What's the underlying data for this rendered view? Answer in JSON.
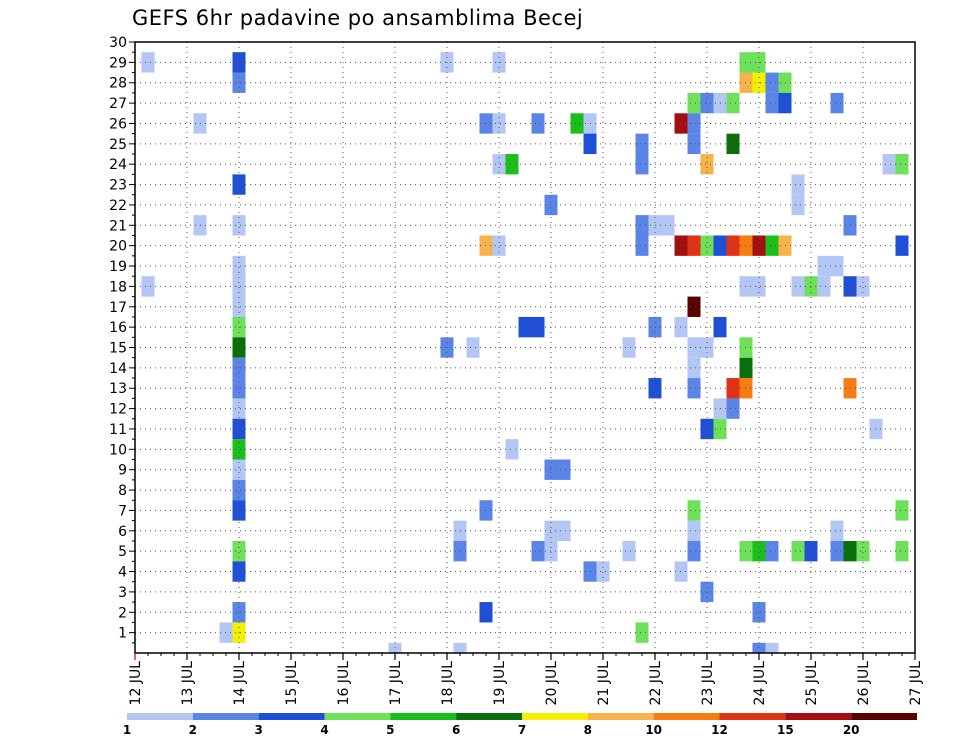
{
  "chart_data": {
    "type": "heatmap",
    "title": "GEFS 6hr padavine po ansamblima Becej",
    "xlabel": "",
    "ylabel": "",
    "x_ticks": [
      "12 JUL",
      "13 JUL",
      "14 JUL",
      "15 JUL",
      "16 JUL",
      "17 JUL",
      "18 JUL",
      "19 JUL",
      "20 JUL",
      "21 JUL",
      "22 JUL",
      "23 JUL",
      "24 JUL",
      "25 JUL",
      "26 JUL",
      "27 JUL"
    ],
    "y_ticks": [
      1,
      2,
      3,
      4,
      5,
      6,
      7,
      8,
      9,
      10,
      11,
      12,
      13,
      14,
      15,
      16,
      17,
      18,
      19,
      20,
      21,
      22,
      23,
      24,
      25,
      26,
      27,
      28,
      29,
      30
    ],
    "xlim_days": [
      12,
      27
    ],
    "ylim": [
      0,
      30
    ],
    "grid": true,
    "colorbar": {
      "labels": [
        "1",
        "2",
        "3",
        "4",
        "5",
        "6",
        "7",
        "8",
        "10",
        "12",
        "15",
        "20"
      ],
      "colors": [
        "#b3c6f4",
        "#5a85e6",
        "#1f4fd6",
        "#6ee05a",
        "#1bbf1b",
        "#0a6e0a",
        "#f5f000",
        "#f7b24a",
        "#f57d14",
        "#e03214",
        "#a30f0f",
        "#5a0000"
      ]
    },
    "cells": [
      [
        12.25,
        29,
        0
      ],
      [
        12.25,
        18,
        0
      ],
      [
        13.25,
        26,
        0
      ],
      [
        13.25,
        21,
        0
      ],
      [
        14,
        29,
        2
      ],
      [
        14,
        28,
        1
      ],
      [
        14,
        23,
        2
      ],
      [
        14,
        21,
        0
      ],
      [
        14,
        19,
        0
      ],
      [
        14,
        18,
        0
      ],
      [
        14,
        17,
        0
      ],
      [
        14,
        16,
        3
      ],
      [
        14,
        15,
        5
      ],
      [
        14,
        14,
        1
      ],
      [
        14,
        13,
        1
      ],
      [
        14,
        12,
        0
      ],
      [
        14,
        11,
        2
      ],
      [
        14,
        10,
        4
      ],
      [
        14,
        9,
        0
      ],
      [
        14,
        8,
        1
      ],
      [
        14,
        7,
        2
      ],
      [
        14,
        5,
        3
      ],
      [
        14,
        4,
        2
      ],
      [
        14,
        2,
        1
      ],
      [
        14,
        1,
        6
      ],
      [
        13.75,
        1,
        0
      ],
      [
        17,
        0,
        0
      ],
      [
        18,
        29,
        0
      ],
      [
        18,
        15,
        1
      ],
      [
        18.25,
        6,
        0
      ],
      [
        18.25,
        5,
        1
      ],
      [
        18.25,
        0,
        0
      ],
      [
        18.5,
        15,
        0
      ],
      [
        18.75,
        26,
        1
      ],
      [
        18.75,
        20,
        7
      ],
      [
        18.75,
        7,
        1
      ],
      [
        18.75,
        2,
        2
      ],
      [
        19,
        29,
        0
      ],
      [
        19,
        26,
        0
      ],
      [
        19,
        24,
        0
      ],
      [
        19,
        20,
        0
      ],
      [
        19.25,
        24,
        4
      ],
      [
        19.25,
        10,
        0
      ],
      [
        19.5,
        16,
        2
      ],
      [
        19.75,
        16,
        2
      ],
      [
        19.75,
        26,
        1
      ],
      [
        19.75,
        5,
        1
      ],
      [
        20,
        5,
        0
      ],
      [
        20,
        22,
        1
      ],
      [
        20,
        9,
        1
      ],
      [
        20.25,
        9,
        1
      ],
      [
        20,
        6,
        0
      ],
      [
        20.25,
        6,
        0
      ],
      [
        20.5,
        26,
        4
      ],
      [
        20.75,
        26,
        0
      ],
      [
        20.75,
        25,
        2
      ],
      [
        20.75,
        4,
        1
      ],
      [
        21,
        4,
        0
      ],
      [
        21.5,
        15,
        0
      ],
      [
        21.5,
        5,
        0
      ],
      [
        21.75,
        25,
        1
      ],
      [
        21.75,
        24,
        1
      ],
      [
        21.75,
        21,
        1
      ],
      [
        21.75,
        20,
        1
      ],
      [
        21.75,
        1,
        3
      ],
      [
        22,
        21,
        0
      ],
      [
        22.25,
        21,
        0
      ],
      [
        22,
        16,
        1
      ],
      [
        22,
        13,
        2
      ],
      [
        22.5,
        16,
        0
      ],
      [
        22.5,
        4,
        0
      ],
      [
        22.5,
        26,
        10
      ],
      [
        22.5,
        20,
        10
      ],
      [
        22.75,
        20,
        9
      ],
      [
        23,
        20,
        3
      ],
      [
        23.25,
        20,
        2
      ],
      [
        23.5,
        20,
        9
      ],
      [
        23.75,
        20,
        8
      ],
      [
        24,
        20,
        10
      ],
      [
        24.25,
        20,
        4
      ],
      [
        24.5,
        20,
        7
      ],
      [
        22.75,
        27,
        3
      ],
      [
        23,
        27,
        1
      ],
      [
        23.25,
        27,
        0
      ],
      [
        23.5,
        27,
        3
      ],
      [
        23.75,
        28,
        7
      ],
      [
        24,
        28,
        6
      ],
      [
        24.25,
        28,
        1
      ],
      [
        24.5,
        28,
        3
      ],
      [
        24.25,
        27,
        1
      ],
      [
        24.5,
        27,
        2
      ],
      [
        25.5,
        27,
        1
      ],
      [
        23.75,
        29,
        3
      ],
      [
        24,
        29,
        3
      ],
      [
        22.75,
        26,
        1
      ],
      [
        22.75,
        25,
        1
      ],
      [
        22.75,
        17,
        11
      ],
      [
        23,
        24,
        7
      ],
      [
        23,
        15,
        0
      ],
      [
        22.75,
        15,
        0
      ],
      [
        22.75,
        14,
        0
      ],
      [
        22.75,
        13,
        1
      ],
      [
        23.25,
        16,
        2
      ],
      [
        23,
        11,
        2
      ],
      [
        23.25,
        11,
        3
      ],
      [
        23.25,
        12,
        0
      ],
      [
        23.5,
        12,
        1
      ],
      [
        23.5,
        13,
        9
      ],
      [
        23.75,
        13,
        8
      ],
      [
        23.75,
        14,
        5
      ],
      [
        23.75,
        15,
        3
      ],
      [
        23.5,
        25,
        5
      ],
      [
        22.75,
        7,
        3
      ],
      [
        22.75,
        6,
        0
      ],
      [
        22.75,
        5,
        1
      ],
      [
        23,
        3,
        1
      ],
      [
        23.75,
        18,
        0
      ],
      [
        24,
        18,
        0
      ],
      [
        24,
        2,
        1
      ],
      [
        24,
        0,
        1
      ],
      [
        24.25,
        0,
        0
      ],
      [
        23.75,
        5,
        3
      ],
      [
        24,
        5,
        4
      ],
      [
        24.25,
        5,
        1
      ],
      [
        24.75,
        5,
        3
      ],
      [
        25,
        5,
        2
      ],
      [
        25.5,
        5,
        1
      ],
      [
        25.75,
        5,
        5
      ],
      [
        26,
        5,
        3
      ],
      [
        26.75,
        5,
        3
      ],
      [
        24.75,
        23,
        0
      ],
      [
        24.75,
        22,
        0
      ],
      [
        24.75,
        18,
        0
      ],
      [
        25,
        18,
        3
      ],
      [
        25.25,
        18,
        0
      ],
      [
        25.75,
        18,
        2
      ],
      [
        26,
        18,
        0
      ],
      [
        25.25,
        19,
        0
      ],
      [
        25.5,
        19,
        0
      ],
      [
        25.75,
        21,
        1
      ],
      [
        26.25,
        11,
        0
      ],
      [
        25.75,
        13,
        8
      ],
      [
        25.5,
        6,
        0
      ],
      [
        26.75,
        7,
        3
      ],
      [
        26.5,
        24,
        0
      ],
      [
        26.75,
        24,
        3
      ],
      [
        26.75,
        20,
        2
      ]
    ]
  }
}
